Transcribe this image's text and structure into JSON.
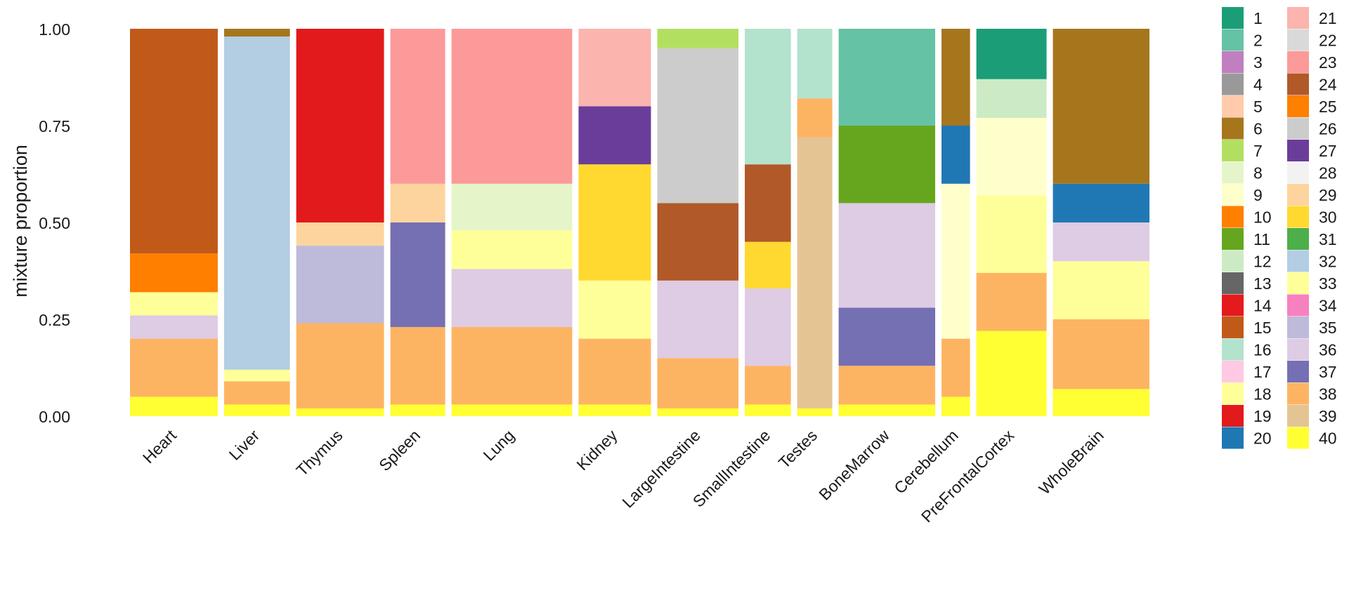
{
  "chart_data": {
    "type": "stacked-bar",
    "title": "",
    "xlabel": "",
    "ylabel": "mixture proportion",
    "ylim": [
      0,
      1
    ],
    "yticks": [
      0.0,
      0.25,
      0.5,
      0.75,
      1.0
    ],
    "ytick_labels": [
      "0.00",
      "0.25",
      "0.50",
      "0.75",
      "1.00"
    ],
    "legend_position": "right",
    "legend_columns": 2,
    "components": [
      {
        "id": "1",
        "color": "#1B9E77"
      },
      {
        "id": "2",
        "color": "#66C2A5"
      },
      {
        "id": "3",
        "color": "#C07FC0"
      },
      {
        "id": "4",
        "color": "#999999"
      },
      {
        "id": "5",
        "color": "#FFCBAA"
      },
      {
        "id": "6",
        "color": "#A6761D"
      },
      {
        "id": "7",
        "color": "#B3DF61"
      },
      {
        "id": "8",
        "color": "#E6F5C9"
      },
      {
        "id": "9",
        "color": "#FFFFCC"
      },
      {
        "id": "10",
        "color": "#FF7F00"
      },
      {
        "id": "11",
        "color": "#66A61E"
      },
      {
        "id": "12",
        "color": "#CCEBC5"
      },
      {
        "id": "13",
        "color": "#666666"
      },
      {
        "id": "14",
        "color": "#E41A1C"
      },
      {
        "id": "15",
        "color": "#C15A19"
      },
      {
        "id": "16",
        "color": "#B3E2CD"
      },
      {
        "id": "17",
        "color": "#FDC9E3"
      },
      {
        "id": "18",
        "color": "#FFFF99"
      },
      {
        "id": "19",
        "color": "#E31A1C"
      },
      {
        "id": "20",
        "color": "#1F78B4"
      },
      {
        "id": "21",
        "color": "#FBB4AE"
      },
      {
        "id": "22",
        "color": "#D9D9D9"
      },
      {
        "id": "23",
        "color": "#FB9A99"
      },
      {
        "id": "24",
        "color": "#B15928"
      },
      {
        "id": "25",
        "color": "#FF7F00"
      },
      {
        "id": "26",
        "color": "#CCCCCC"
      },
      {
        "id": "27",
        "color": "#6A3D9A"
      },
      {
        "id": "28",
        "color": "#F2F2F2"
      },
      {
        "id": "29",
        "color": "#FDD49E"
      },
      {
        "id": "30",
        "color": "#FFD92F"
      },
      {
        "id": "31",
        "color": "#4DAF4A"
      },
      {
        "id": "32",
        "color": "#B3CDE3"
      },
      {
        "id": "33",
        "color": "#FFFF99"
      },
      {
        "id": "34",
        "color": "#F781BF"
      },
      {
        "id": "35",
        "color": "#BEBADA"
      },
      {
        "id": "36",
        "color": "#DECBE4"
      },
      {
        "id": "37",
        "color": "#7570B3"
      },
      {
        "id": "38",
        "color": "#FDB462"
      },
      {
        "id": "39",
        "color": "#E5C494"
      },
      {
        "id": "40",
        "color": "#FFFF33"
      }
    ],
    "groups": [
      {
        "label": "Heart",
        "n_samples": 40,
        "segments": [
          {
            "c": "40",
            "v": 0.05
          },
          {
            "c": "38",
            "v": 0.15
          },
          {
            "c": "36",
            "v": 0.06
          },
          {
            "c": "33",
            "v": 0.06
          },
          {
            "c": "10",
            "v": 0.1
          },
          {
            "c": "15",
            "v": 0.58
          }
        ]
      },
      {
        "label": "Liver",
        "n_samples": 30,
        "segments": [
          {
            "c": "40",
            "v": 0.03
          },
          {
            "c": "38",
            "v": 0.06
          },
          {
            "c": "33",
            "v": 0.03
          },
          {
            "c": "32",
            "v": 0.86
          },
          {
            "c": "6",
            "v": 0.02
          }
        ]
      },
      {
        "label": "Thymus",
        "n_samples": 40,
        "segments": [
          {
            "c": "40",
            "v": 0.02
          },
          {
            "c": "38",
            "v": 0.22
          },
          {
            "c": "35",
            "v": 0.2
          },
          {
            "c": "29",
            "v": 0.06
          },
          {
            "c": "19",
            "v": 0.5
          }
        ]
      },
      {
        "label": "Spleen",
        "n_samples": 25,
        "segments": [
          {
            "c": "40",
            "v": 0.03
          },
          {
            "c": "38",
            "v": 0.2
          },
          {
            "c": "37",
            "v": 0.27
          },
          {
            "c": "29",
            "v": 0.1
          },
          {
            "c": "23",
            "v": 0.4
          }
        ]
      },
      {
        "label": "Lung",
        "n_samples": 55,
        "segments": [
          {
            "c": "40",
            "v": 0.03
          },
          {
            "c": "38",
            "v": 0.2
          },
          {
            "c": "36",
            "v": 0.15
          },
          {
            "c": "33",
            "v": 0.1
          },
          {
            "c": "8",
            "v": 0.12
          },
          {
            "c": "23",
            "v": 0.4
          }
        ]
      },
      {
        "label": "Kidney",
        "n_samples": 33,
        "segments": [
          {
            "c": "40",
            "v": 0.03
          },
          {
            "c": "38",
            "v": 0.17
          },
          {
            "c": "33",
            "v": 0.15
          },
          {
            "c": "30",
            "v": 0.3
          },
          {
            "c": "27",
            "v": 0.15
          },
          {
            "c": "21",
            "v": 0.2
          }
        ]
      },
      {
        "label": "LargeIntestine",
        "n_samples": 37,
        "segments": [
          {
            "c": "40",
            "v": 0.02
          },
          {
            "c": "38",
            "v": 0.13
          },
          {
            "c": "36",
            "v": 0.2
          },
          {
            "c": "24",
            "v": 0.2
          },
          {
            "c": "26",
            "v": 0.4
          },
          {
            "c": "7",
            "v": 0.05
          }
        ]
      },
      {
        "label": "SmallIntestine",
        "n_samples": 21,
        "segments": [
          {
            "c": "40",
            "v": 0.03
          },
          {
            "c": "38",
            "v": 0.1
          },
          {
            "c": "36",
            "v": 0.2
          },
          {
            "c": "30",
            "v": 0.12
          },
          {
            "c": "24",
            "v": 0.2
          },
          {
            "c": "16",
            "v": 0.35
          }
        ]
      },
      {
        "label": "Testes",
        "n_samples": 16,
        "segments": [
          {
            "c": "40",
            "v": 0.02
          },
          {
            "c": "39",
            "v": 0.7
          },
          {
            "c": "38",
            "v": 0.1
          },
          {
            "c": "16",
            "v": 0.18
          }
        ]
      },
      {
        "label": "BoneMarrow",
        "n_samples": 44,
        "segments": [
          {
            "c": "40",
            "v": 0.03
          },
          {
            "c": "38",
            "v": 0.1
          },
          {
            "c": "37",
            "v": 0.15
          },
          {
            "c": "36",
            "v": 0.27
          },
          {
            "c": "11",
            "v": 0.2
          },
          {
            "c": "2",
            "v": 0.25
          }
        ]
      },
      {
        "label": "Cerebellum",
        "n_samples": 13,
        "segments": [
          {
            "c": "40",
            "v": 0.05
          },
          {
            "c": "38",
            "v": 0.15
          },
          {
            "c": "9",
            "v": 0.4
          },
          {
            "c": "20",
            "v": 0.15
          },
          {
            "c": "6",
            "v": 0.25
          }
        ]
      },
      {
        "label": "PreFrontalCortex",
        "n_samples": 32,
        "segments": [
          {
            "c": "40",
            "v": 0.22
          },
          {
            "c": "38",
            "v": 0.15
          },
          {
            "c": "33",
            "v": 0.2
          },
          {
            "c": "9",
            "v": 0.2
          },
          {
            "c": "12",
            "v": 0.1
          },
          {
            "c": "1",
            "v": 0.13
          }
        ]
      },
      {
        "label": "WholeBrain",
        "n_samples": 44,
        "segments": [
          {
            "c": "40",
            "v": 0.07
          },
          {
            "c": "38",
            "v": 0.18
          },
          {
            "c": "33",
            "v": 0.15
          },
          {
            "c": "36",
            "v": 0.1
          },
          {
            "c": "20",
            "v": 0.1
          },
          {
            "c": "6",
            "v": 0.4
          }
        ]
      }
    ]
  }
}
